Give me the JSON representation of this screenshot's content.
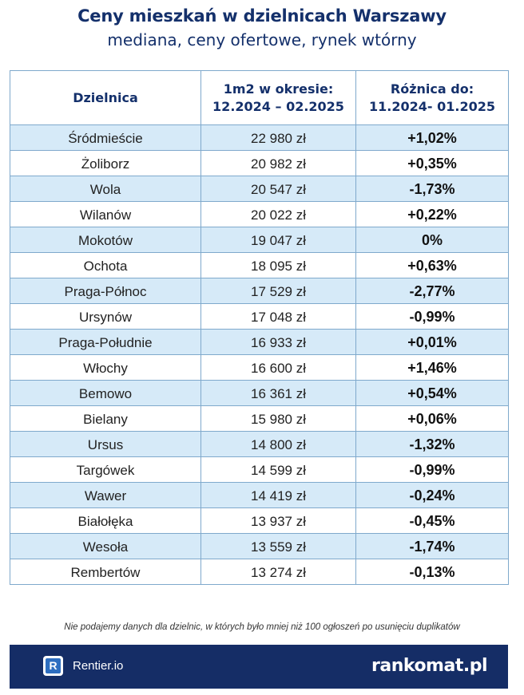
{
  "header": {
    "title": "Ceny mieszkań w dzielnicach Warszawy",
    "subtitle": "mediana, ceny ofertowe, rynek wtórny"
  },
  "table": {
    "columns": [
      "Dzielnica",
      "1m2 w okresie:\n12.2024 – 02.2025",
      "Różnica do:\n11.2024- 01.2025"
    ],
    "rows": [
      {
        "district": "Śródmieście",
        "price": "22 980 zł",
        "change": "+1,02%"
      },
      {
        "district": "Żoliborz",
        "price": "20 982 zł",
        "change": "+0,35%"
      },
      {
        "district": "Wola",
        "price": "20 547 zł",
        "change": "-1,73%"
      },
      {
        "district": "Wilanów",
        "price": "20 022 zł",
        "change": "+0,22%"
      },
      {
        "district": "Mokotów",
        "price": "19 047 zł",
        "change": "0%"
      },
      {
        "district": "Ochota",
        "price": "18 095 zł",
        "change": "+0,63%"
      },
      {
        "district": "Praga-Północ",
        "price": "17 529 zł",
        "change": "-2,77%"
      },
      {
        "district": "Ursynów",
        "price": "17 048 zł",
        "change": "-0,99%"
      },
      {
        "district": "Praga-Południe",
        "price": "16 933 zł",
        "change": "+0,01%"
      },
      {
        "district": "Włochy",
        "price": "16 600 zł",
        "change": "+1,46%"
      },
      {
        "district": "Bemowo",
        "price": "16 361 zł",
        "change": "+0,54%"
      },
      {
        "district": "Bielany",
        "price": "15 980 zł",
        "change": "+0,06%"
      },
      {
        "district": "Ursus",
        "price": "14 800 zł",
        "change": "-1,32%"
      },
      {
        "district": "Targówek",
        "price": "14 599 zł",
        "change": "-0,99%"
      },
      {
        "district": "Wawer",
        "price": "14 419 zł",
        "change": "-0,24%"
      },
      {
        "district": "Białołęka",
        "price": "13 937 zł",
        "change": "-0,45%"
      },
      {
        "district": "Wesoła",
        "price": "13 559 zł",
        "change": "-1,74%"
      },
      {
        "district": "Rembertów",
        "price": "13 274 zł",
        "change": "-0,13%"
      }
    ]
  },
  "note": "Nie podajemy danych dla dzielnic, w których było mniej niż 100 ogłoszeń po usunięciu duplikatów",
  "footer": {
    "left_logo_letter": "R",
    "left_brand": "Rentier.io",
    "right_brand": "rankomat.pl"
  },
  "colors": {
    "title": "#14306b",
    "row_stripe": "#d6eaf8",
    "footer_bg": "#152d66"
  }
}
